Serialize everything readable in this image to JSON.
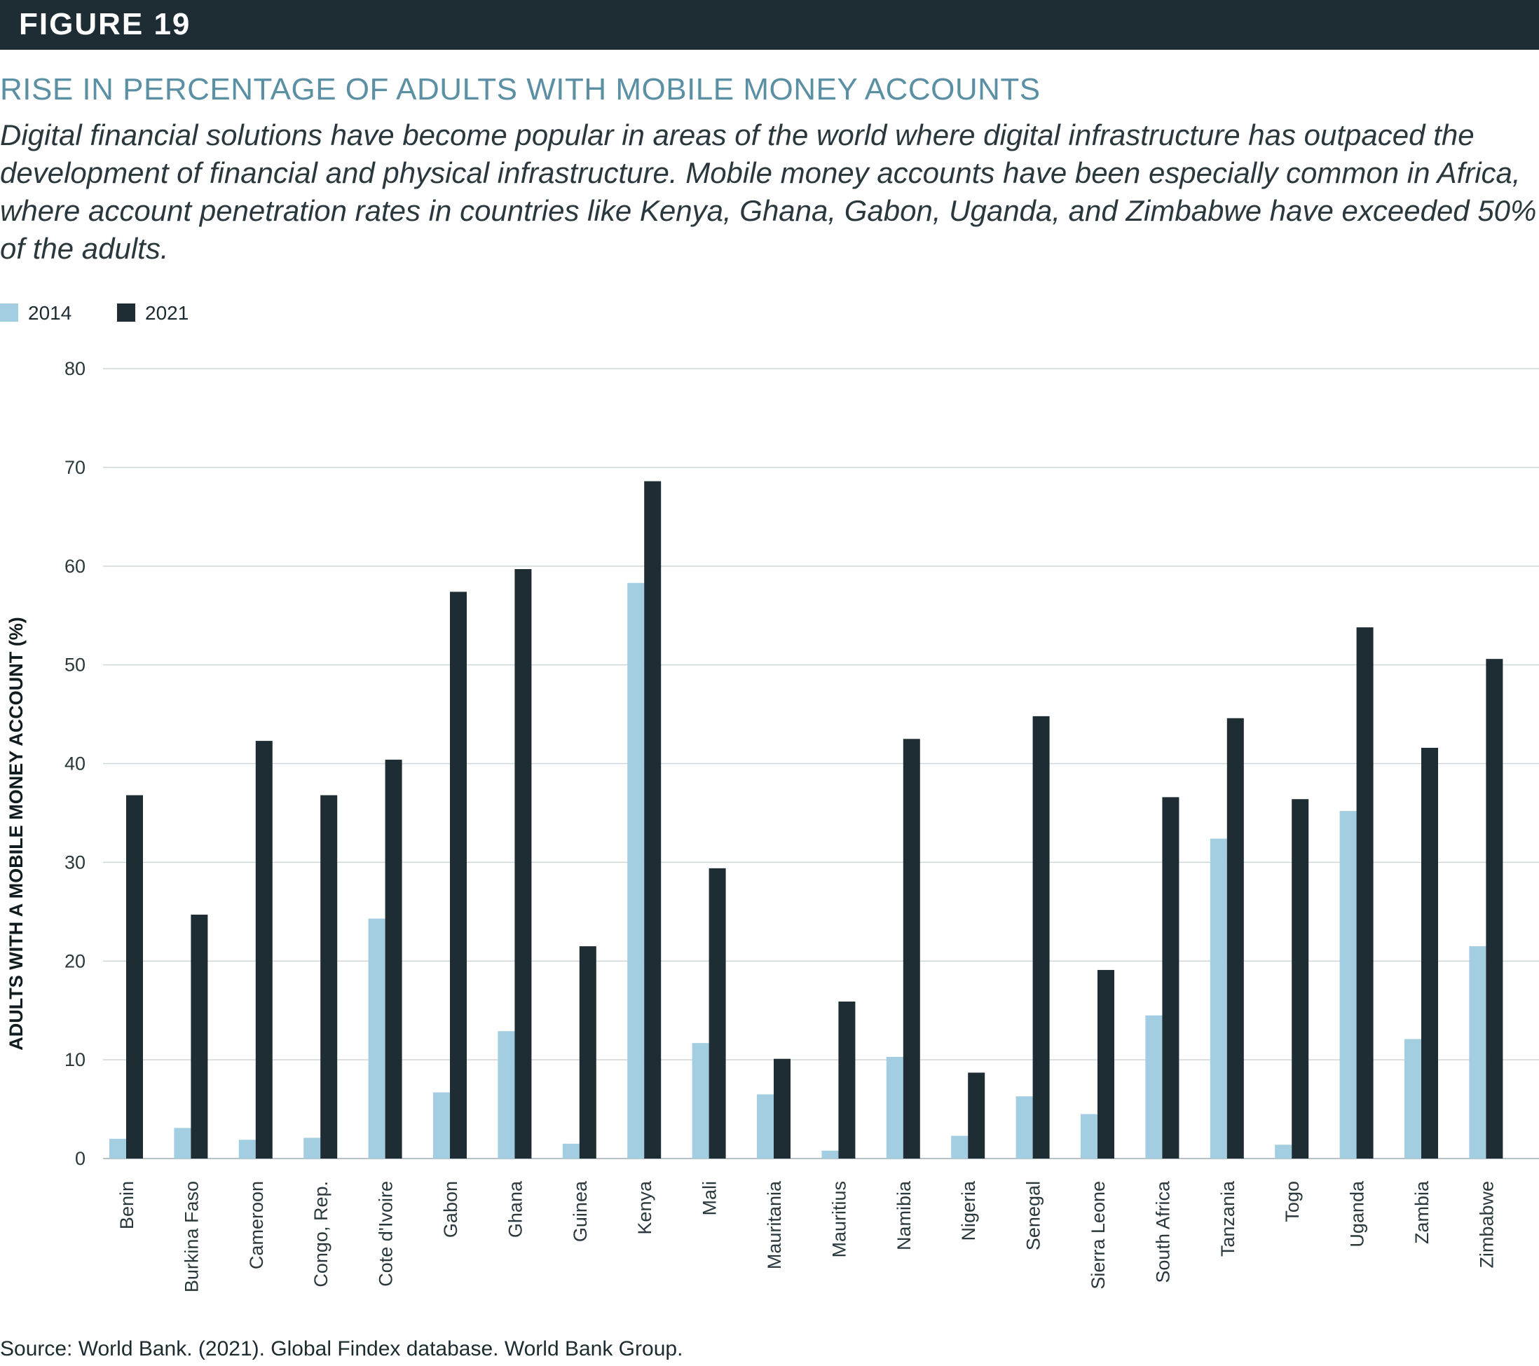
{
  "header": {
    "figure_label": "FIGURE 19"
  },
  "colors": {
    "header_bg": "#1e2d33",
    "title": "#5b8fa3",
    "series_2014": "#a3cde0",
    "series_2021": "#1e2d33",
    "grid": "#cfd6d8"
  },
  "chart_data": {
    "type": "bar",
    "title": "RISE IN PERCENTAGE OF ADULTS WITH MOBILE MONEY ACCOUNTS",
    "subtitle": "Digital financial solutions have become popular in areas of the world where digital infrastructure has outpaced the development of financial and physical infrastructure. Mobile money accounts have been especially common in Africa, where account penetration rates in countries like Kenya, Ghana, Gabon, Uganda, and Zimbabwe have exceeded 50% of the adults.",
    "xlabel": "",
    "ylabel": "ADULTS WITH A MOBILE MONEY ACCOUNT (%)",
    "ylim": [
      0,
      80
    ],
    "yticks": [
      0,
      10,
      20,
      30,
      40,
      50,
      60,
      70,
      80
    ],
    "grid": true,
    "legend_position": "top-left",
    "categories": [
      "Benin",
      "Burkina Faso",
      "Cameroon",
      "Congo, Rep.",
      "Cote d'Ivoire",
      "Gabon",
      "Ghana",
      "Guinea",
      "Kenya",
      "Mali",
      "Mauritania",
      "Mauritius",
      "Namibia",
      "Nigeria",
      "Senegal",
      "Sierra Leone",
      "South Africa",
      "Tanzania",
      "Togo",
      "Uganda",
      "Zambia",
      "Zimbabwe"
    ],
    "series": [
      {
        "name": "2014",
        "color": "#a3cde0",
        "values": [
          2.0,
          3.1,
          1.9,
          2.1,
          24.3,
          6.7,
          12.9,
          1.5,
          58.3,
          11.7,
          6.5,
          0.8,
          10.3,
          2.3,
          6.3,
          4.5,
          14.5,
          32.4,
          1.4,
          35.2,
          12.1,
          21.5
        ]
      },
      {
        "name": "2021",
        "color": "#1e2d33",
        "values": [
          36.8,
          24.7,
          42.3,
          36.8,
          40.4,
          57.4,
          59.7,
          21.5,
          68.6,
          29.4,
          10.1,
          15.9,
          42.5,
          8.7,
          44.8,
          19.1,
          36.6,
          44.6,
          36.4,
          53.8,
          41.6,
          50.6
        ]
      }
    ]
  },
  "source": "Source: World Bank. (2021). Global Findex database. World Bank Group."
}
